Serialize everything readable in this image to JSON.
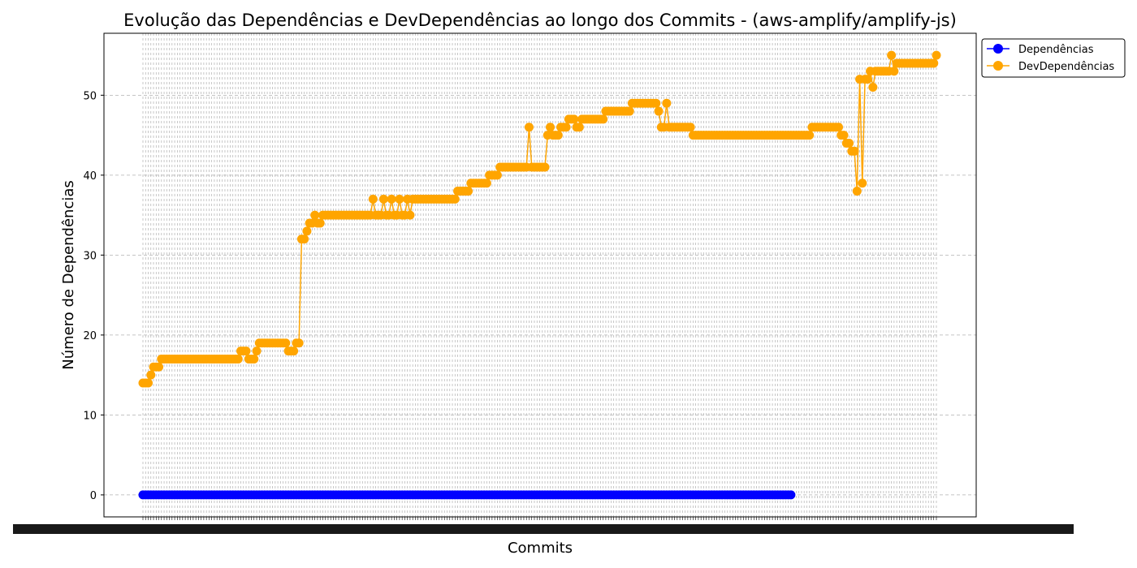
{
  "chart_data": {
    "type": "line",
    "title": "Evolução das Dependências e DevDependências ao longo dos Commits - (aws-amplify/amplify-js)",
    "xlabel": "Commits",
    "ylabel": "Número de Dependências",
    "ylim": [
      -2.75,
      57.75
    ],
    "yticks": [
      0,
      10,
      20,
      30,
      40,
      50
    ],
    "grid": true,
    "legend_position": "upper-right-outside",
    "legend": [
      "Dependências",
      "DevDependências"
    ],
    "series": [
      {
        "name": "Dependências",
        "color": "#0000ff",
        "marker": "circle",
        "values": [
          0,
          0,
          0,
          0,
          0,
          0,
          0,
          0,
          0,
          0,
          0,
          0,
          0,
          0,
          0,
          0,
          0,
          0,
          0,
          0,
          0,
          0,
          0,
          0,
          0,
          0,
          0,
          0,
          0,
          0,
          0,
          0,
          0,
          0,
          0,
          0,
          0,
          0,
          0,
          0,
          0,
          0,
          0,
          0,
          0,
          0,
          0,
          0,
          0,
          0,
          0,
          0,
          0,
          0,
          0,
          0,
          0,
          0,
          0,
          0,
          0,
          0,
          0,
          0,
          0,
          0,
          0,
          0,
          0,
          0,
          0,
          0,
          0,
          0,
          0,
          0,
          0,
          0,
          0,
          0,
          0,
          0,
          0,
          0,
          0,
          0,
          0,
          0,
          0,
          0,
          0,
          0,
          0,
          0,
          0,
          0,
          0,
          0,
          0,
          0,
          0,
          0,
          0,
          0,
          0,
          0,
          0,
          0,
          0,
          0,
          0,
          0,
          0,
          0,
          0,
          0,
          0,
          0,
          0,
          0,
          0,
          0,
          0,
          0,
          0,
          0,
          0,
          0,
          0,
          0,
          0,
          0,
          0,
          0,
          0,
          0,
          0,
          0,
          0,
          0,
          0,
          0,
          0,
          0,
          0,
          0,
          0,
          0,
          0,
          0,
          0,
          0,
          0,
          0,
          0,
          0,
          0,
          0,
          0,
          0,
          0,
          0,
          0,
          0,
          0,
          0,
          0,
          0,
          0,
          0,
          0,
          0,
          0,
          0,
          0,
          0,
          0,
          0,
          0,
          0,
          0,
          0,
          0,
          0,
          0,
          0,
          0,
          0,
          0,
          0,
          0,
          0,
          0,
          0,
          0,
          0,
          0,
          0,
          0,
          0,
          0,
          0,
          0,
          0,
          0,
          0,
          0,
          0,
          0,
          0,
          0,
          0,
          0,
          0,
          0,
          0,
          0,
          0,
          0,
          0,
          0,
          0,
          0,
          0,
          0,
          0,
          0,
          0,
          0,
          0,
          0,
          0,
          0,
          0,
          0,
          0,
          0,
          0,
          0,
          0,
          0,
          0,
          0,
          0,
          0,
          0
        ]
      },
      {
        "name": "DevDependências",
        "color": "#ffa500",
        "marker": "circle",
        "values": [
          14,
          14,
          14,
          15,
          16,
          16,
          16,
          17,
          17,
          17,
          17,
          17,
          17,
          17,
          17,
          17,
          17,
          17,
          17,
          17,
          17,
          17,
          17,
          17,
          17,
          17,
          17,
          17,
          17,
          17,
          17,
          17,
          17,
          17,
          17,
          17,
          17,
          18,
          18,
          18,
          17,
          17,
          17,
          18,
          19,
          19,
          19,
          19,
          19,
          19,
          19,
          19,
          19,
          19,
          19,
          18,
          18,
          18,
          19,
          19,
          32,
          32,
          33,
          34,
          34,
          35,
          34,
          34,
          35,
          35,
          35,
          35,
          35,
          35,
          35,
          35,
          35,
          35,
          35,
          35,
          35,
          35,
          35,
          35,
          35,
          35,
          35,
          37,
          35,
          35,
          35,
          37,
          35,
          35,
          37,
          35,
          35,
          37,
          35,
          35,
          37,
          35,
          37,
          37,
          37,
          37,
          37,
          37,
          37,
          37,
          37,
          37,
          37,
          37,
          37,
          37,
          37,
          37,
          37,
          38,
          38,
          38,
          38,
          38,
          39,
          39,
          39,
          39,
          39,
          39,
          39,
          40,
          40,
          40,
          40,
          41,
          41,
          41,
          41,
          41,
          41,
          41,
          41,
          41,
          41,
          41,
          46,
          41,
          41,
          41,
          41,
          41,
          41,
          45,
          46,
          45,
          45,
          45,
          46,
          46,
          46,
          47,
          47,
          47,
          46,
          46,
          47,
          47,
          47,
          47,
          47,
          47,
          47,
          47,
          47,
          48,
          48,
          48,
          48,
          48,
          48,
          48,
          48,
          48,
          48,
          49,
          49,
          49,
          49,
          49,
          49,
          49,
          49,
          49,
          49,
          48,
          46,
          46,
          49,
          46,
          46,
          46,
          46,
          46,
          46,
          46,
          46,
          46,
          45,
          45,
          45,
          45,
          45,
          45,
          45,
          45,
          45,
          45,
          45,
          45,
          45,
          45,
          45,
          45,
          45,
          45,
          45,
          45,
          45,
          45,
          45,
          45,
          45,
          45,
          45,
          45,
          45,
          45,
          45,
          45,
          45,
          45,
          45,
          45,
          45,
          45,
          45,
          45,
          45,
          45,
          45,
          45,
          45,
          46,
          46,
          46,
          46,
          46,
          46,
          46,
          46,
          46,
          46,
          46,
          45,
          45,
          44,
          44,
          43,
          43,
          38,
          52,
          39,
          52,
          52,
          53,
          51,
          53,
          53,
          53,
          53,
          53,
          53,
          55,
          53,
          54,
          54,
          54,
          54,
          54,
          54,
          54,
          54,
          54,
          54,
          54,
          54,
          54,
          54,
          54,
          55
        ]
      }
    ]
  }
}
